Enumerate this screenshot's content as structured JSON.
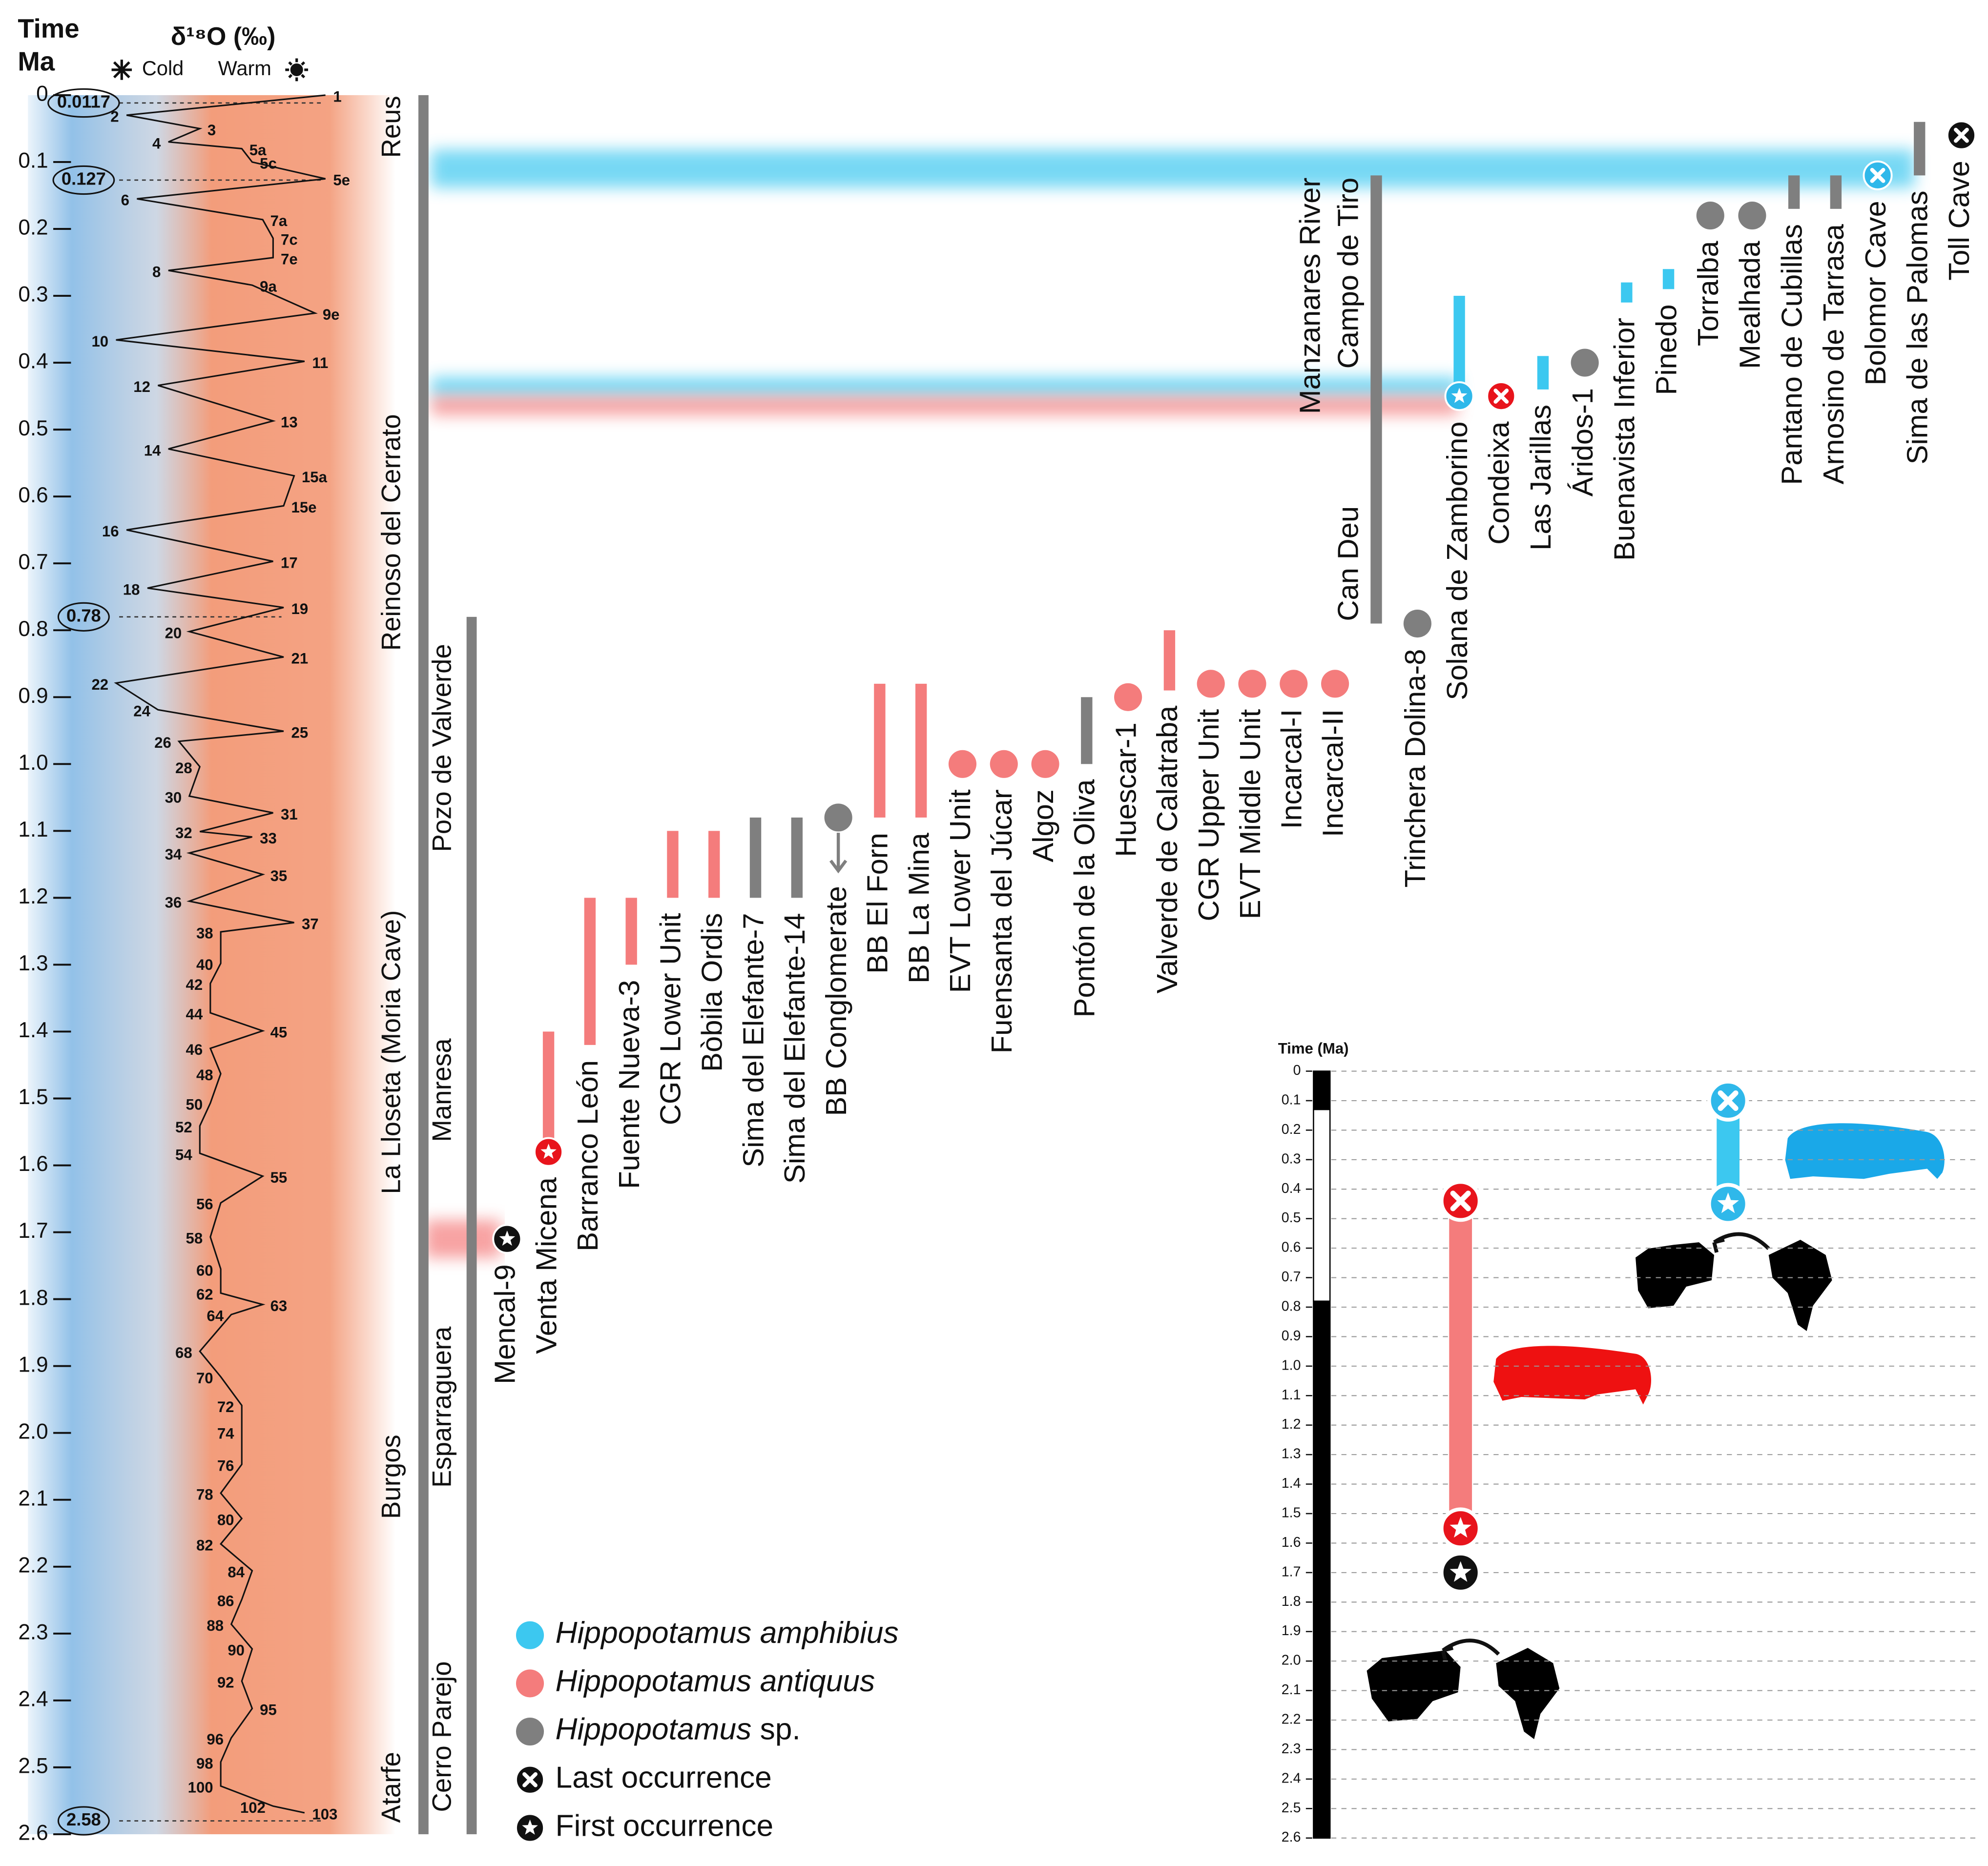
{
  "chart_data": {
    "type": "timeline",
    "time_label": "Time",
    "time_unit": "Ma",
    "curve_title": "δ¹⁸O (‰)",
    "cold_label": "Cold",
    "warm_label": "Warm",
    "ylim": [
      0,
      2.6
    ],
    "yticks": [
      0,
      0.1,
      0.2,
      0.3,
      0.4,
      0.5,
      0.6,
      0.7,
      0.8,
      0.9,
      {
        "value": 1,
        "label": "1.0"
      },
      1.1,
      1.2,
      1.3,
      1.4,
      1.5,
      1.6,
      1.7,
      1.8,
      1.9,
      {
        "value": 2,
        "label": "2.0"
      },
      2.1,
      2.2,
      2.3,
      2.4,
      2.5,
      2.6
    ],
    "xlim": [
      5.3,
      3.0
    ],
    "curve": {
      "labels": [
        "1",
        "2",
        "3",
        "4",
        "5a",
        "5c",
        "5e",
        "6",
        "7a",
        "7c",
        "7e",
        "8",
        "9a",
        "9e",
        "10",
        "11",
        "12",
        "13",
        "14",
        "15a",
        "15e",
        "16",
        "17",
        "18",
        "19",
        "20",
        "21",
        "22",
        "24",
        "25",
        "26",
        "28",
        "30",
        "31",
        "32",
        "33",
        "34",
        "35",
        "36",
        "37",
        "38",
        "40",
        "42",
        "44",
        "45",
        "46",
        "48",
        "50",
        "52",
        "54",
        "55",
        "56",
        "58",
        "60",
        "62",
        "63",
        "64",
        "68",
        "70",
        "72",
        "74",
        "76",
        "78",
        "80",
        "82",
        "84",
        "86",
        "88",
        "90",
        "92",
        "95",
        "96",
        "98",
        "100",
        "102",
        "103"
      ],
      "x": [
        0.0,
        0.03,
        0.05,
        0.07,
        0.08,
        0.1,
        0.125,
        0.155,
        0.186,
        0.214,
        0.243,
        0.262,
        0.284,
        0.326,
        0.366,
        0.398,
        0.434,
        0.487,
        0.529,
        0.569,
        0.614,
        0.65,
        0.697,
        0.737,
        0.766,
        0.802,
        0.84,
        0.879,
        0.919,
        0.951,
        0.966,
        1.004,
        1.048,
        1.073,
        1.101,
        1.109,
        1.133,
        1.165,
        1.205,
        1.237,
        1.251,
        1.298,
        1.328,
        1.372,
        1.399,
        1.425,
        1.463,
        1.507,
        1.541,
        1.582,
        1.616,
        1.656,
        1.707,
        1.755,
        1.791,
        1.808,
        1.823,
        1.878,
        1.916,
        1.959,
        1.999,
        2.047,
        2.09,
        2.128,
        2.166,
        2.206,
        2.249,
        2.286,
        2.323,
        2.371,
        2.412,
        2.456,
        2.492,
        2.528,
        2.558,
        2.568
      ],
      "values": [
        3.1,
        5.0,
        4.3,
        4.6,
        3.9,
        3.8,
        3.1,
        4.9,
        3.7,
        3.6,
        3.6,
        4.6,
        3.8,
        3.2,
        5.1,
        3.3,
        4.7,
        3.6,
        4.6,
        3.4,
        3.5,
        5.0,
        3.6,
        4.8,
        3.5,
        4.4,
        3.5,
        5.1,
        4.7,
        3.5,
        4.5,
        4.3,
        4.4,
        3.6,
        4.3,
        3.8,
        4.4,
        3.7,
        4.4,
        3.4,
        4.1,
        4.1,
        4.2,
        4.2,
        3.7,
        4.2,
        4.1,
        4.2,
        4.3,
        4.3,
        3.7,
        4.1,
        4.2,
        4.1,
        4.1,
        3.7,
        4.0,
        4.3,
        4.1,
        3.9,
        3.9,
        3.9,
        4.1,
        3.9,
        4.1,
        3.8,
        3.9,
        4.0,
        3.8,
        3.9,
        3.8,
        4.0,
        4.1,
        4.1,
        3.6,
        3.3
      ]
    },
    "boundaries": [
      0.0117,
      0.127,
      0.78,
      2.58
    ],
    "formations": [
      {
        "names": [
          "Reus",
          "Reinoso del Cerrato",
          "La Lloseta (Moria Cave)",
          "Burgos",
          "Atarfe"
        ],
        "range": [
          0,
          2.6
        ]
      },
      {
        "names": [
          "Pozo de Valverde",
          "Manresa",
          "Esparraguera",
          "Cerro Parejo"
        ],
        "range": [
          0.78,
          2.6
        ]
      }
    ],
    "taxa": {
      "amphibius": {
        "name": "Hippopotamus amphibius",
        "color": "#3cc8f0",
        "marker_color": "#2fb8ea"
      },
      "antiquus": {
        "name": "Hippopotamus antiquus",
        "color": "#f47c7c",
        "marker_color": "#e8141c"
      },
      "sp": {
        "name": "Hippopotamus sp.",
        "color": "#7f7f7f",
        "marker_color": "#7f7f7f"
      }
    },
    "markers": {
      "last": "Last occurrence",
      "first": "First occurrence",
      "color": "#111111"
    },
    "bands": [
      {
        "value": 0.11,
        "taxa": [
          "amphibius"
        ]
      },
      {
        "value": 0.45,
        "taxa": [
          "amphibius",
          "antiquus"
        ]
      },
      {
        "value": 1.71,
        "taxa": [
          "antiquus"
        ]
      }
    ],
    "sites": [
      {
        "name": "Mencal-9",
        "age": 1.71,
        "marker": "first"
      },
      {
        "name": "Venta Micena",
        "taxon": "antiquus",
        "range": [
          1.4,
          1.58
        ],
        "marker": "first"
      },
      {
        "name": "Barranco León",
        "taxon": "antiquus",
        "range": [
          1.2,
          1.42
        ]
      },
      {
        "name": "Fuente Nueva-3",
        "taxon": "antiquus",
        "range": [
          1.2,
          1.3
        ]
      },
      {
        "name": "CGR Lower Unit",
        "taxon": "antiquus",
        "range": [
          1.1,
          1.2
        ]
      },
      {
        "name": "Bòbila Ordis",
        "taxon": "antiquus",
        "range": [
          1.1,
          1.2
        ]
      },
      {
        "name": "Sima del Elefante-7",
        "taxon": "sp",
        "range": [
          1.08,
          1.2
        ]
      },
      {
        "name": "Sima del Elefante-14",
        "taxon": "sp",
        "range": [
          1.08,
          1.2
        ]
      },
      {
        "name": "BB Conglomerate",
        "taxon": "sp",
        "age": 1.08,
        "arrow": true
      },
      {
        "name": "BB El Forn",
        "taxon": "antiquus",
        "range": [
          0.88,
          1.08
        ]
      },
      {
        "name": "BB La Mina",
        "taxon": "antiquus",
        "range": [
          0.88,
          1.08
        ]
      },
      {
        "name": "EVT Lower Unit",
        "taxon": "antiquus",
        "age": 1.0
      },
      {
        "name": "Fuensanta del Júcar",
        "taxon": "antiquus",
        "age": 1.0
      },
      {
        "name": "Algoz",
        "taxon": "antiquus",
        "age": 1.0
      },
      {
        "name": "Pontón de la Oliva",
        "taxon": "sp",
        "range": [
          0.9,
          1.0
        ]
      },
      {
        "name": "Huescar-1",
        "taxon": "antiquus",
        "age": 0.9
      },
      {
        "name": "Valverde de Calatraba",
        "taxon": "antiquus",
        "range": [
          0.8,
          0.89
        ]
      },
      {
        "name": "CGR Upper Unit",
        "taxon": "antiquus",
        "age": 0.88
      },
      {
        "name": "EVT Middle Unit",
        "taxon": "antiquus",
        "age": 0.88
      },
      {
        "name": "Incarcal-I",
        "taxon": "antiquus",
        "age": 0.88
      },
      {
        "name": "Incarcal-II",
        "taxon": "antiquus",
        "age": 0.88
      },
      {
        "name": "Trinchera Dolina-8",
        "taxon": "sp",
        "age": 0.79
      },
      {
        "name": "Solana de Zamborino",
        "taxon": "amphibius",
        "range": [
          0.3,
          0.45
        ],
        "marker": "first"
      },
      {
        "name": "Condeixa",
        "taxon": "antiquus",
        "age": 0.45,
        "marker": "last"
      },
      {
        "name": "Las Jarillas",
        "taxon": "amphibius",
        "range": [
          0.39,
          0.44
        ]
      },
      {
        "name": "Áridos-1",
        "taxon": "sp",
        "age": 0.4
      },
      {
        "name": "Buenavista Inferior",
        "taxon": "amphibius",
        "range": [
          0.28,
          0.31
        ]
      },
      {
        "name": "Pinedo",
        "taxon": "amphibius",
        "range": [
          0.26,
          0.29
        ]
      },
      {
        "name": "Torralba",
        "taxon": "sp",
        "age": 0.18
      },
      {
        "name": "Mealhada",
        "taxon": "sp",
        "age": 0.18
      },
      {
        "name": "Pantano de Cubillas",
        "taxon": "sp",
        "range": [
          0.12,
          0.17
        ]
      },
      {
        "name": "Arnosino de Tarrasa",
        "taxon": "sp",
        "range": [
          0.12,
          0.17
        ]
      },
      {
        "name": "Bolomor Cave",
        "taxon": "amphibius",
        "age": 0.12,
        "marker": "last"
      },
      {
        "name": "Sima de las Palomas",
        "taxon": "sp",
        "range": [
          0.04,
          0.12
        ]
      },
      {
        "name": "Toll Cave",
        "age": 0.06,
        "marker": "last"
      }
    ],
    "bracket": {
      "names": [
        "Manzanares River",
        "Campo de Tiro",
        "Can Deu"
      ],
      "taxon": "sp",
      "range": [
        0.12,
        0.79
      ]
    },
    "inset": {
      "title": "Time (Ma)",
      "ylim": [
        0,
        2.6
      ],
      "yticks": [
        0,
        0.1,
        0.2,
        0.3,
        0.4,
        0.5,
        0.6,
        0.7,
        0.8,
        0.9,
        {
          "value": 1,
          "label": "1.0"
        },
        1.1,
        1.2,
        1.3,
        1.4,
        1.5,
        1.6,
        1.7,
        1.8,
        1.9,
        {
          "value": 2,
          "label": "2.0"
        },
        2.1,
        2.2,
        2.3,
        2.4,
        2.5,
        2.6
      ],
      "polarity": [
        {
          "range": [
            0,
            0.13
          ],
          "color": "#000000"
        },
        {
          "range": [
            0.13,
            0.78
          ],
          "color": "#ffffff"
        },
        {
          "range": [
            0.78,
            2.6
          ],
          "color": "#000000"
        }
      ],
      "ranges": [
        {
          "taxon": "amphibius",
          "range": [
            0.1,
            0.45
          ]
        },
        {
          "taxon": "antiquus",
          "range": [
            0.44,
            1.55
          ]
        }
      ],
      "first_arrival": 1.7
    }
  }
}
